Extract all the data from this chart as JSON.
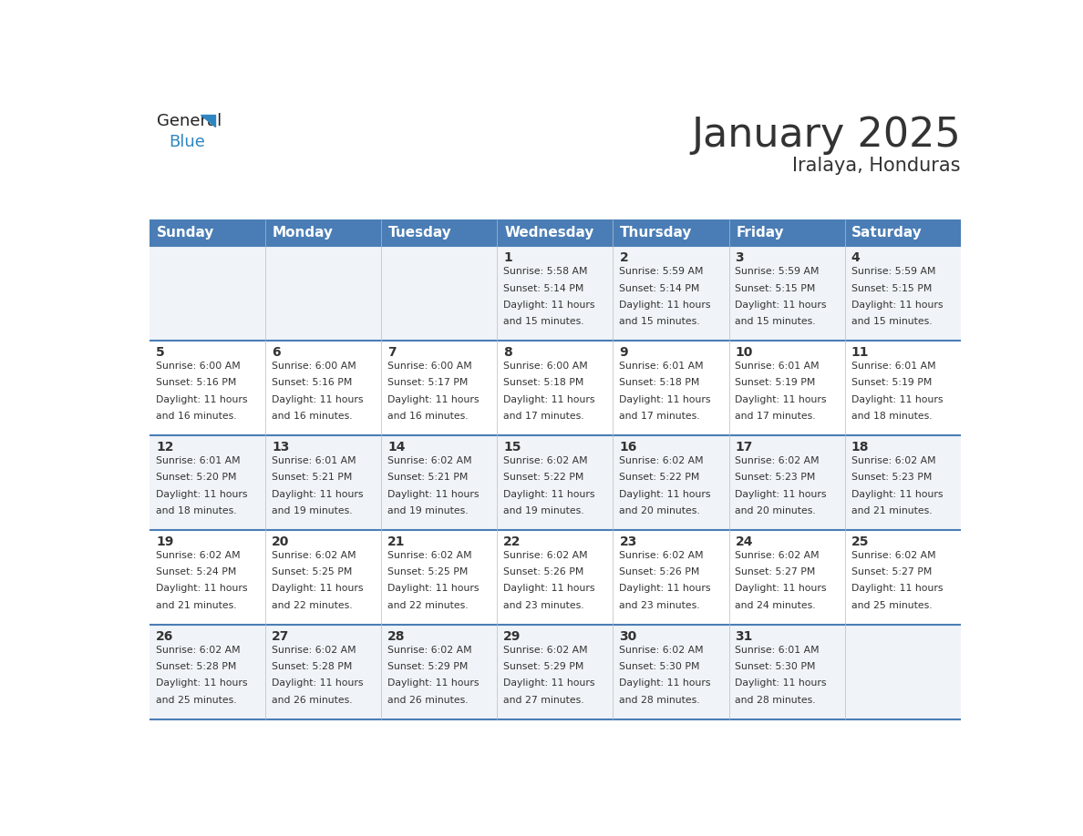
{
  "title": "January 2025",
  "subtitle": "Iralaya, Honduras",
  "header_bg_color": "#4A7DB5",
  "header_text_color": "#FFFFFF",
  "row_bg_even": "#F0F4F8",
  "row_bg_odd": "#FFFFFF",
  "row_divider_color": "#4A7DB5",
  "text_color": "#333333",
  "days_of_week": [
    "Sunday",
    "Monday",
    "Tuesday",
    "Wednesday",
    "Thursday",
    "Friday",
    "Saturday"
  ],
  "calendar_data": [
    [
      {
        "day": "",
        "sunrise": "",
        "sunset": "",
        "daylight": ""
      },
      {
        "day": "",
        "sunrise": "",
        "sunset": "",
        "daylight": ""
      },
      {
        "day": "",
        "sunrise": "",
        "sunset": "",
        "daylight": ""
      },
      {
        "day": "1",
        "sunrise": "5:58 AM",
        "sunset": "5:14 PM",
        "daylight": "11 hours\nand 15 minutes."
      },
      {
        "day": "2",
        "sunrise": "5:59 AM",
        "sunset": "5:14 PM",
        "daylight": "11 hours\nand 15 minutes."
      },
      {
        "day": "3",
        "sunrise": "5:59 AM",
        "sunset": "5:15 PM",
        "daylight": "11 hours\nand 15 minutes."
      },
      {
        "day": "4",
        "sunrise": "5:59 AM",
        "sunset": "5:15 PM",
        "daylight": "11 hours\nand 15 minutes."
      }
    ],
    [
      {
        "day": "5",
        "sunrise": "6:00 AM",
        "sunset": "5:16 PM",
        "daylight": "11 hours\nand 16 minutes."
      },
      {
        "day": "6",
        "sunrise": "6:00 AM",
        "sunset": "5:16 PM",
        "daylight": "11 hours\nand 16 minutes."
      },
      {
        "day": "7",
        "sunrise": "6:00 AM",
        "sunset": "5:17 PM",
        "daylight": "11 hours\nand 16 minutes."
      },
      {
        "day": "8",
        "sunrise": "6:00 AM",
        "sunset": "5:18 PM",
        "daylight": "11 hours\nand 17 minutes."
      },
      {
        "day": "9",
        "sunrise": "6:01 AM",
        "sunset": "5:18 PM",
        "daylight": "11 hours\nand 17 minutes."
      },
      {
        "day": "10",
        "sunrise": "6:01 AM",
        "sunset": "5:19 PM",
        "daylight": "11 hours\nand 17 minutes."
      },
      {
        "day": "11",
        "sunrise": "6:01 AM",
        "sunset": "5:19 PM",
        "daylight": "11 hours\nand 18 minutes."
      }
    ],
    [
      {
        "day": "12",
        "sunrise": "6:01 AM",
        "sunset": "5:20 PM",
        "daylight": "11 hours\nand 18 minutes."
      },
      {
        "day": "13",
        "sunrise": "6:01 AM",
        "sunset": "5:21 PM",
        "daylight": "11 hours\nand 19 minutes."
      },
      {
        "day": "14",
        "sunrise": "6:02 AM",
        "sunset": "5:21 PM",
        "daylight": "11 hours\nand 19 minutes."
      },
      {
        "day": "15",
        "sunrise": "6:02 AM",
        "sunset": "5:22 PM",
        "daylight": "11 hours\nand 19 minutes."
      },
      {
        "day": "16",
        "sunrise": "6:02 AM",
        "sunset": "5:22 PM",
        "daylight": "11 hours\nand 20 minutes."
      },
      {
        "day": "17",
        "sunrise": "6:02 AM",
        "sunset": "5:23 PM",
        "daylight": "11 hours\nand 20 minutes."
      },
      {
        "day": "18",
        "sunrise": "6:02 AM",
        "sunset": "5:23 PM",
        "daylight": "11 hours\nand 21 minutes."
      }
    ],
    [
      {
        "day": "19",
        "sunrise": "6:02 AM",
        "sunset": "5:24 PM",
        "daylight": "11 hours\nand 21 minutes."
      },
      {
        "day": "20",
        "sunrise": "6:02 AM",
        "sunset": "5:25 PM",
        "daylight": "11 hours\nand 22 minutes."
      },
      {
        "day": "21",
        "sunrise": "6:02 AM",
        "sunset": "5:25 PM",
        "daylight": "11 hours\nand 22 minutes."
      },
      {
        "day": "22",
        "sunrise": "6:02 AM",
        "sunset": "5:26 PM",
        "daylight": "11 hours\nand 23 minutes."
      },
      {
        "day": "23",
        "sunrise": "6:02 AM",
        "sunset": "5:26 PM",
        "daylight": "11 hours\nand 23 minutes."
      },
      {
        "day": "24",
        "sunrise": "6:02 AM",
        "sunset": "5:27 PM",
        "daylight": "11 hours\nand 24 minutes."
      },
      {
        "day": "25",
        "sunrise": "6:02 AM",
        "sunset": "5:27 PM",
        "daylight": "11 hours\nand 25 minutes."
      }
    ],
    [
      {
        "day": "26",
        "sunrise": "6:02 AM",
        "sunset": "5:28 PM",
        "daylight": "11 hours\nand 25 minutes."
      },
      {
        "day": "27",
        "sunrise": "6:02 AM",
        "sunset": "5:28 PM",
        "daylight": "11 hours\nand 26 minutes."
      },
      {
        "day": "28",
        "sunrise": "6:02 AM",
        "sunset": "5:29 PM",
        "daylight": "11 hours\nand 26 minutes."
      },
      {
        "day": "29",
        "sunrise": "6:02 AM",
        "sunset": "5:29 PM",
        "daylight": "11 hours\nand 27 minutes."
      },
      {
        "day": "30",
        "sunrise": "6:02 AM",
        "sunset": "5:30 PM",
        "daylight": "11 hours\nand 28 minutes."
      },
      {
        "day": "31",
        "sunrise": "6:01 AM",
        "sunset": "5:30 PM",
        "daylight": "11 hours\nand 28 minutes."
      },
      {
        "day": "",
        "sunrise": "",
        "sunset": "",
        "daylight": ""
      }
    ]
  ],
  "logo_general_color": "#222222",
  "logo_blue_color": "#2E86C1",
  "title_fontsize": 32,
  "subtitle_fontsize": 15,
  "day_number_fontsize": 10,
  "cell_text_fontsize": 7.8,
  "header_fontsize": 11
}
